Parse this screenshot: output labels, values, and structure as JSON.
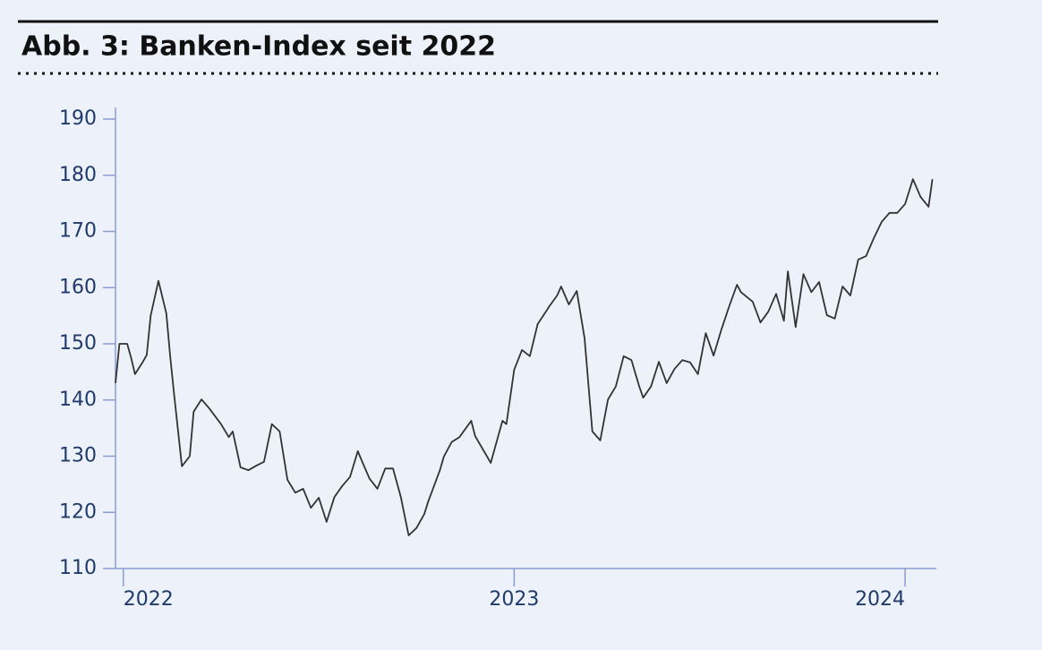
{
  "chart_data": {
    "type": "line",
    "title": "Abb. 3: Banken-Index seit 2022",
    "x": [
      2021.98,
      2021.99,
      2022.01,
      2022.02,
      2022.03,
      2022.05,
      2022.06,
      2022.07,
      2022.09,
      2022.11,
      2022.12,
      2022.13,
      2022.15,
      2022.17,
      2022.18,
      2022.2,
      2022.22,
      2022.25,
      2022.27,
      2022.28,
      2022.3,
      2022.32,
      2022.34,
      2022.36,
      2022.38,
      2022.4,
      2022.42,
      2022.44,
      2022.46,
      2022.48,
      2022.5,
      2022.52,
      2022.54,
      2022.56,
      2022.58,
      2022.6,
      2022.61,
      2022.63,
      2022.65,
      2022.67,
      2022.69,
      2022.71,
      2022.73,
      2022.75,
      2022.77,
      2022.78,
      2022.81,
      2022.82,
      2022.84,
      2022.86,
      2022.89,
      2022.9,
      2022.92,
      2022.94,
      2022.97,
      2022.98,
      2023.0,
      2023.02,
      2023.04,
      2023.06,
      2023.08,
      2023.09,
      2023.11,
      2023.12,
      2023.14,
      2023.16,
      2023.18,
      2023.2,
      2023.22,
      2023.24,
      2023.26,
      2023.28,
      2023.3,
      2023.32,
      2023.33,
      2023.35,
      2023.37,
      2023.39,
      2023.41,
      2023.43,
      2023.45,
      2023.47,
      2023.49,
      2023.51,
      2023.53,
      2023.55,
      2023.57,
      2023.58,
      2023.61,
      2023.63,
      2023.65,
      2023.67,
      2023.69,
      2023.7,
      2023.72,
      2023.74,
      2023.76,
      2023.78,
      2023.8,
      2023.82,
      2023.84,
      2023.86,
      2023.88,
      2023.9,
      2023.92,
      2023.94,
      2023.96,
      2023.98,
      2024.0,
      2024.02,
      2024.04,
      2024.06,
      2024.07
    ],
    "values": [
      143,
      150,
      150,
      147.5,
      144.6,
      146.8,
      148,
      155,
      161.2,
      155.4,
      147.8,
      141,
      128.2,
      130,
      137.9,
      140.1,
      138.5,
      135.7,
      133.4,
      134.4,
      128,
      127.5,
      128.3,
      129,
      135.7,
      134.4,
      125.8,
      123.5,
      124.2,
      120.8,
      122.6,
      118.3,
      122.7,
      124.7,
      126.3,
      130.9,
      129.2,
      126,
      124.2,
      127.8,
      127.8,
      122.7,
      115.9,
      117.2,
      119.7,
      121.9,
      127.5,
      129.9,
      132.5,
      133.4,
      136.3,
      133.6,
      131.2,
      128.8,
      136.3,
      135.7,
      145.4,
      148.9,
      147.8,
      153.5,
      155.6,
      156.7,
      158.6,
      160.2,
      157,
      159.4,
      151,
      134.4,
      132.8,
      140.1,
      142.4,
      147.8,
      147.1,
      142.4,
      140.4,
      142.4,
      146.8,
      143,
      145.5,
      147.1,
      146.7,
      144.6,
      151.9,
      147.9,
      152.5,
      156.7,
      160.5,
      159.2,
      157.5,
      153.8,
      155.7,
      158.9,
      154.1,
      162.9,
      153,
      162.4,
      159.2,
      161,
      155.1,
      154.5,
      160.2,
      158.6,
      165,
      165.6,
      168.8,
      171.7,
      173.3,
      173.3,
      174.9,
      179.3,
      176.1,
      174.4,
      179.3
    ],
    "color": "#333333",
    "xlim": [
      2021.98,
      2024.08
    ],
    "xticks": [
      2022,
      2023,
      2024
    ],
    "ylim": [
      110,
      190
    ],
    "yticks": [
      110,
      120,
      130,
      140,
      150,
      160,
      170,
      180,
      190
    ]
  }
}
